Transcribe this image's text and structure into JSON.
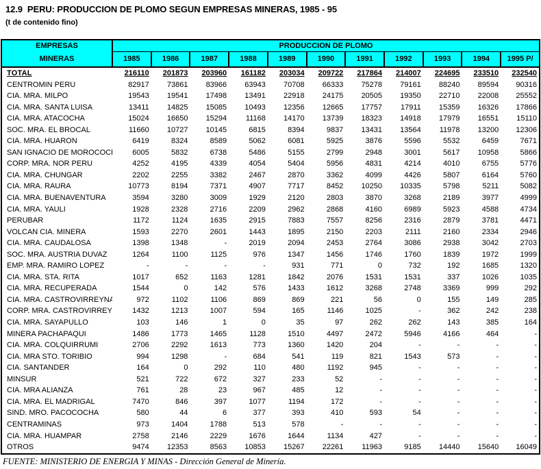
{
  "page": {
    "title": "12.9  PERU: PRODUCCION DE PLOMO SEGUN EMPRESAS MINERAS, 1985 - 95",
    "subtitle": "(t de contenido fino)",
    "source": "FUENTE: MINISTERIO DE ENERGIA Y MINAS - Dirección General de Minería."
  },
  "colors": {
    "header_bg": "#00FFFF",
    "border": "#000000",
    "text": "#000000"
  },
  "table": {
    "left_header_line1": "EMPRESAS",
    "left_header_line2": "MINERAS",
    "group_header": "PRODUCCION DE PLOMO",
    "years": [
      "1985",
      "1986",
      "1987",
      "1988",
      "1989",
      "1990",
      "1991",
      "1992",
      "1993",
      "1994",
      "1995 P/"
    ],
    "rows": [
      {
        "name": "TOTAL",
        "total": true,
        "values": [
          "216110",
          "201873",
          "203960",
          "161182",
          "203034",
          "209722",
          "217864",
          "214007",
          "224695",
          "233510",
          "232540"
        ]
      },
      {
        "name": "CENTROMIN PERU",
        "values": [
          "82917",
          "73861",
          "83966",
          "63943",
          "70708",
          "66333",
          "75278",
          "79161",
          "88240",
          "89594",
          "90316"
        ]
      },
      {
        "name": "CIA. MRA. MILPO",
        "values": [
          "19543",
          "19541",
          "17498",
          "13491",
          "22918",
          "24175",
          "20505",
          "19350",
          "22710",
          "22008",
          "25552"
        ]
      },
      {
        "name": "CIA. MRA. SANTA LUISA",
        "values": [
          "13411",
          "14825",
          "15085",
          "10493",
          "12356",
          "12665",
          "17757",
          "17911",
          "15359",
          "16326",
          "17866"
        ]
      },
      {
        "name": "CIA. MRA. ATACOCHA",
        "values": [
          "15024",
          "16650",
          "15294",
          "11168",
          "14170",
          "13739",
          "18323",
          "14918",
          "17979",
          "16551",
          "15110"
        ]
      },
      {
        "name": "SOC. MRA. EL BROCAL",
        "values": [
          "11660",
          "10727",
          "10145",
          "6815",
          "8394",
          "9837",
          "13431",
          "13564",
          "11978",
          "13200",
          "12306"
        ]
      },
      {
        "name": "CIA. MRA. HUARON",
        "values": [
          "6419",
          "8324",
          "8589",
          "5062",
          "6081",
          "5925",
          "3876",
          "5596",
          "5532",
          "6459",
          "7671"
        ]
      },
      {
        "name": "SAN IGNACIO DE MOROCOCHA",
        "values": [
          "6005",
          "5832",
          "6738",
          "5486",
          "5155",
          "2799",
          "2948",
          "3001",
          "5617",
          "10958",
          "5866"
        ]
      },
      {
        "name": "CORP. MRA. NOR PERU",
        "values": [
          "4252",
          "4195",
          "4339",
          "4054",
          "5404",
          "5956",
          "4831",
          "4214",
          "4010",
          "6755",
          "5776"
        ]
      },
      {
        "name": "CIA. MRA. CHUNGAR",
        "values": [
          "2202",
          "2255",
          "3382",
          "2467",
          "2870",
          "3362",
          "4099",
          "4426",
          "5807",
          "6164",
          "5760"
        ]
      },
      {
        "name": "CIA. MRA. RAURA",
        "values": [
          "10773",
          "8194",
          "7371",
          "4907",
          "7717",
          "8452",
          "10250",
          "10335",
          "5798",
          "5211",
          "5082"
        ]
      },
      {
        "name": "CIA. MRA. BUENAVENTURA",
        "values": [
          "3594",
          "3280",
          "3009",
          "1929",
          "2120",
          "2803",
          "3870",
          "3268",
          "2189",
          "3977",
          "4999"
        ]
      },
      {
        "name": "CIA. MRA. YAULI",
        "values": [
          "1928",
          "2328",
          "2716",
          "2209",
          "2962",
          "2868",
          "4160",
          "6989",
          "5923",
          "4588",
          "4734"
        ]
      },
      {
        "name": "PERUBAR",
        "values": [
          "1172",
          "1124",
          "1635",
          "2915",
          "7883",
          "7557",
          "8256",
          "2316",
          "2879",
          "3781",
          "4471"
        ]
      },
      {
        "name": "VOLCAN CIA. MINERA",
        "values": [
          "1593",
          "2270",
          "2601",
          "1443",
          "1895",
          "2150",
          "2203",
          "2111",
          "2160",
          "2334",
          "2946"
        ]
      },
      {
        "name": "CIA. MRA. CAUDALOSA",
        "values": [
          "1398",
          "1348",
          "-",
          "2019",
          "2094",
          "2453",
          "2764",
          "3086",
          "2938",
          "3042",
          "2703"
        ]
      },
      {
        "name": "SOC. MRA. AUSTRIA DUVAZ",
        "values": [
          "1264",
          "1100",
          "1125",
          "976",
          "1347",
          "1456",
          "1746",
          "1760",
          "1839",
          "1972",
          "1999"
        ]
      },
      {
        "name": "EMP. MRA. RAMIRO LOPEZ",
        "values": [
          "-",
          "-",
          "-",
          "-",
          "931",
          "771",
          "0",
          "732",
          "192",
          "1685",
          "1320"
        ]
      },
      {
        "name": "CIA. MRA. STA. RITA",
        "values": [
          "1017",
          "652",
          "1163",
          "1281",
          "1842",
          "2076",
          "1531",
          "1531",
          "337",
          "1026",
          "1035"
        ]
      },
      {
        "name": "CIA. MRA. RECUPERADA",
        "values": [
          "1544",
          "0",
          "142",
          "576",
          "1433",
          "1612",
          "3268",
          "2748",
          "3369",
          "999",
          "292"
        ]
      },
      {
        "name": "CIA. MRA. CASTROVIRREYNA",
        "values": [
          "972",
          "1102",
          "1106",
          "869",
          "869",
          "221",
          "56",
          "0",
          "155",
          "149",
          "285"
        ]
      },
      {
        "name": "CORP. MRA. CASTROVIRREYNA",
        "values": [
          "1432",
          "1213",
          "1007",
          "594",
          "165",
          "1146",
          "1025",
          "-",
          "362",
          "242",
          "238"
        ]
      },
      {
        "name": "CIA. MRA. SAYAPULLO",
        "values": [
          "103",
          "146",
          "1",
          "0",
          "35",
          "97",
          "262",
          "262",
          "143",
          "385",
          "164"
        ]
      },
      {
        "name": "MINERA PACHAPAQUI",
        "values": [
          "1486",
          "1773",
          "1465",
          "1128",
          "1510",
          "4497",
          "2472",
          "5946",
          "4166",
          "464",
          "-"
        ]
      },
      {
        "name": "CIA. MRA. COLQUIRRUMI",
        "values": [
          "2706",
          "2292",
          "1613",
          "773",
          "1360",
          "1420",
          "204",
          "-",
          "-",
          "-",
          "-"
        ]
      },
      {
        "name": "CIA. MRA STO. TORIBIO",
        "values": [
          "994",
          "1298",
          "-",
          "684",
          "541",
          "119",
          "821",
          "1543",
          "573",
          "-",
          "-"
        ]
      },
      {
        "name": "CIA. SANTANDER",
        "values": [
          "164",
          "0",
          "292",
          "110",
          "480",
          "1192",
          "945",
          "-",
          "-",
          "-",
          "-"
        ]
      },
      {
        "name": "MINSUR",
        "values": [
          "521",
          "722",
          "672",
          "327",
          "233",
          "52",
          "-",
          "-",
          "-",
          "-",
          "-"
        ]
      },
      {
        "name": "CIA. MRA ALIANZA",
        "values": [
          "761",
          "28",
          "23",
          "967",
          "485",
          "12",
          "-",
          "-",
          "-",
          "-",
          "-"
        ]
      },
      {
        "name": "CIA. MRA. EL MADRIGAL",
        "values": [
          "7470",
          "846",
          "397",
          "1077",
          "1194",
          "172",
          "-",
          "-",
          "-",
          "-",
          "-"
        ]
      },
      {
        "name": "SIND. MRO. PACOCOCHA",
        "values": [
          "580",
          "44",
          "6",
          "377",
          "393",
          "410",
          "593",
          "54",
          "-",
          "-",
          "-"
        ]
      },
      {
        "name": "CENTRAMINAS",
        "values": [
          "973",
          "1404",
          "1788",
          "513",
          "578",
          "-",
          "-",
          "-",
          "-",
          "-",
          "-"
        ]
      },
      {
        "name": "CIA. MRA. HUAMPAR",
        "values": [
          "2758",
          "2146",
          "2229",
          "1676",
          "1644",
          "1134",
          "427",
          "-",
          "-",
          "-",
          "-"
        ]
      },
      {
        "name": "OTROS",
        "values": [
          "9474",
          "12353",
          "8563",
          "10853",
          "15267",
          "22261",
          "11963",
          "9185",
          "14440",
          "15640",
          "16049"
        ]
      }
    ]
  }
}
